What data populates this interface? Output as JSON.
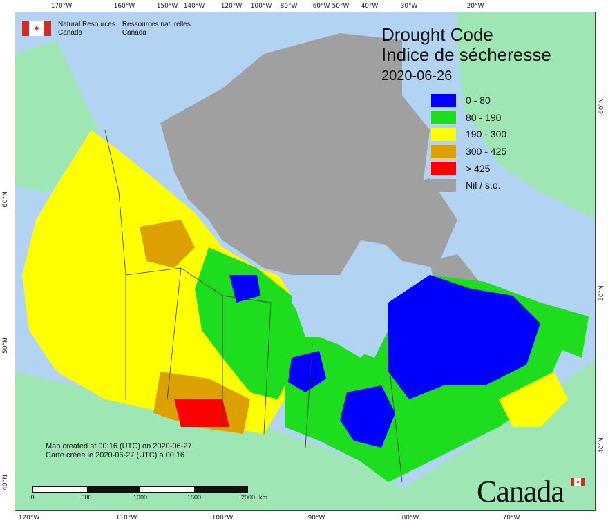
{
  "title": {
    "en": "Drought Code",
    "fr": "Indice de sécheresse",
    "date": "2020-06-26"
  },
  "agency": {
    "en_line1": "Natural Resources",
    "en_line2": "Canada",
    "fr_line1": "Ressources naturelles",
    "fr_line2": "Canada"
  },
  "legend": [
    {
      "label": "0 - 80",
      "color": "#0000ff"
    },
    {
      "label": "80 - 190",
      "color": "#1edc1e"
    },
    {
      "label": "190 - 300",
      "color": "#ffff00"
    },
    {
      "label": "300 - 425",
      "color": "#dca000"
    },
    {
      "label": "> 425",
      "color": "#ff0000"
    },
    {
      "label": "Nil / s.o.",
      "color": "#a0a0a0"
    }
  ],
  "credit": {
    "en": "Map created at 00:16 (UTC) on 2020-06-27",
    "fr": "Carte créée le 2020-06-27 (UTC) à 00:16"
  },
  "scale": {
    "labels": [
      "0",
      "500",
      "1000",
      "1500",
      "2000"
    ],
    "unit": "km"
  },
  "graticule": {
    "top": [
      "170°W",
      "160°W",
      "150°W",
      "140°W",
      "120°W",
      "100°W",
      "80°W",
      "60°W",
      "50°W",
      "40°W",
      "30°W",
      "20°W"
    ],
    "bottom": [
      "120°W",
      "110°W",
      "100°W",
      "90°W",
      "80°W",
      "70°W"
    ],
    "left": [
      "60°N",
      "50°N",
      "40°N"
    ],
    "right": [
      "60°N",
      "50°N",
      "40°N"
    ]
  },
  "wordmark": "Canada",
  "colors": {
    "ocean": "#b3d3f2",
    "land_outside": "#9ee6b4",
    "nil": "#a0a0a0",
    "boundary": "#333333"
  }
}
